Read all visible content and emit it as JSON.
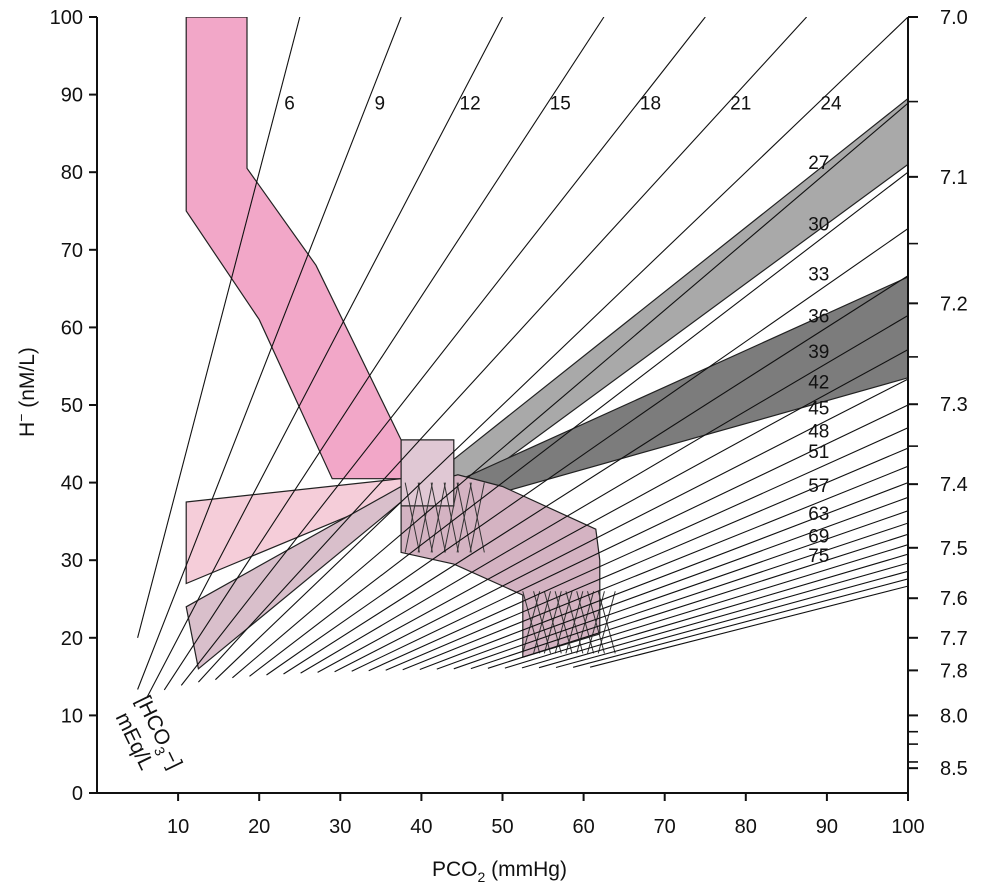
{
  "chart_data": {
    "type": "line",
    "xlabel": "PCO",
    "xlabel_sub": "2",
    "xlabel_unit": " (mmHg)",
    "ylabel": "H",
    "ylabel_sup": "−",
    "ylabel_unit": " (nM/L)",
    "xlim": [
      0,
      100
    ],
    "ylim": [
      0,
      100
    ],
    "x_ticks": [
      10,
      20,
      30,
      40,
      50,
      60,
      70,
      80,
      90,
      100
    ],
    "y_ticks": [
      0,
      10,
      20,
      30,
      40,
      50,
      60,
      70,
      80,
      90,
      100
    ],
    "right_axis_ticks": [
      {
        "label": "7.0",
        "h": 100
      },
      {
        "label": "7.1",
        "h": 79.4
      },
      {
        "label": "7.2",
        "h": 63.1
      },
      {
        "label": "7.3",
        "h": 50.1
      },
      {
        "label": "7.4",
        "h": 39.8
      },
      {
        "label": "7.5",
        "h": 31.6
      },
      {
        "label": "7.6",
        "h": 25.1
      },
      {
        "label": "7.7",
        "h": 20.0
      },
      {
        "label": "7.8",
        "h": 15.8
      },
      {
        "label": "8.0",
        "h": 10.0
      },
      {
        "label": "8.5",
        "h": 3.2
      }
    ],
    "right_axis_minor_ticks": [
      89.1,
      70.8,
      56.2,
      44.7,
      6.3,
      7.9,
      4.0
    ],
    "hco3_label": [
      "[HCO",
      "3",
      "−]",
      "mEq/L"
    ],
    "isopleths": {
      "description_values": [
        6,
        9,
        12,
        15,
        18,
        21,
        24,
        27,
        30,
        33,
        36,
        39,
        42,
        45,
        48,
        51,
        57,
        63,
        69,
        75
      ],
      "labeled": [
        {
          "label": "6",
          "hco3": 6
        },
        {
          "label": "9",
          "hco3": 9
        },
        {
          "label": "12",
          "hco3": 12
        },
        {
          "label": "15",
          "hco3": 15
        },
        {
          "label": "18",
          "hco3": 18
        },
        {
          "label": "21",
          "hco3": 21
        },
        {
          "label": "24",
          "hco3": 24
        },
        {
          "label": "27",
          "hco3": 27
        },
        {
          "label": "30",
          "hco3": 30
        },
        {
          "label": "33",
          "hco3": 33
        },
        {
          "label": "36",
          "hco3": 36
        },
        {
          "label": "39",
          "hco3": 39
        },
        {
          "label": "42",
          "hco3": 42
        },
        {
          "label": "45",
          "hco3": 45
        },
        {
          "label": "48",
          "hco3": 48
        },
        {
          "label": "51",
          "hco3": 51
        },
        {
          "label": "57",
          "hco3": 57
        },
        {
          "label": "63",
          "hco3": 63
        },
        {
          "label": "69",
          "hco3": 69
        },
        {
          "label": "75",
          "hco3": 75
        }
      ],
      "unlabeled": [
        54,
        60,
        66,
        72,
        78,
        81,
        84,
        87,
        90
      ]
    },
    "regions": [
      {
        "name": "acute respiratory acidosis band",
        "color": "#f2a7c8",
        "points": [
          [
            11,
            100
          ],
          [
            18.5,
            100
          ],
          [
            18.5,
            80.5
          ],
          [
            27,
            68
          ],
          [
            37.5,
            45.5
          ],
          [
            37.5,
            40.5
          ],
          [
            29,
            40.5
          ],
          [
            20,
            61
          ],
          [
            11,
            75
          ]
        ]
      },
      {
        "name": "chronic respiratory acidosis band",
        "color": "#a9a9a9",
        "points": [
          [
            44,
            43
          ],
          [
            100,
            89.5
          ],
          [
            100,
            81
          ],
          [
            44,
            38
          ]
        ]
      },
      {
        "name": "metabolic alkalosis band",
        "color": "#7c7c7c",
        "points": [
          [
            44,
            40
          ],
          [
            100,
            66.5
          ],
          [
            100,
            53.5
          ],
          [
            44,
            37
          ]
        ]
      },
      {
        "name": "light pink band",
        "color": "#f5cdd9",
        "points": [
          [
            11,
            37.5
          ],
          [
            37.5,
            40.5
          ],
          [
            37.5,
            38.5
          ],
          [
            11,
            27
          ]
        ]
      },
      {
        "name": "mauve band",
        "color": "#d9bfcb",
        "points": [
          [
            11,
            24
          ],
          [
            37.5,
            39.5
          ],
          [
            37.5,
            37.5
          ],
          [
            12.5,
            16
          ]
        ]
      },
      {
        "name": "metabolic alkalosis region",
        "color": "#d4b3c2",
        "points": [
          [
            37.5,
            39
          ],
          [
            44.5,
            41
          ],
          [
            50,
            39.5
          ],
          [
            61.5,
            34
          ],
          [
            62,
            30
          ],
          [
            62,
            20.5
          ],
          [
            52.5,
            17.5
          ],
          [
            52.5,
            25.5
          ],
          [
            44,
            29.5
          ],
          [
            37.5,
            31
          ]
        ]
      },
      {
        "name": "normal box",
        "color": "#e0c8d4",
        "points": [
          [
            37.5,
            45.5
          ],
          [
            44,
            45.5
          ],
          [
            44,
            37
          ],
          [
            37.5,
            37
          ]
        ]
      }
    ]
  }
}
